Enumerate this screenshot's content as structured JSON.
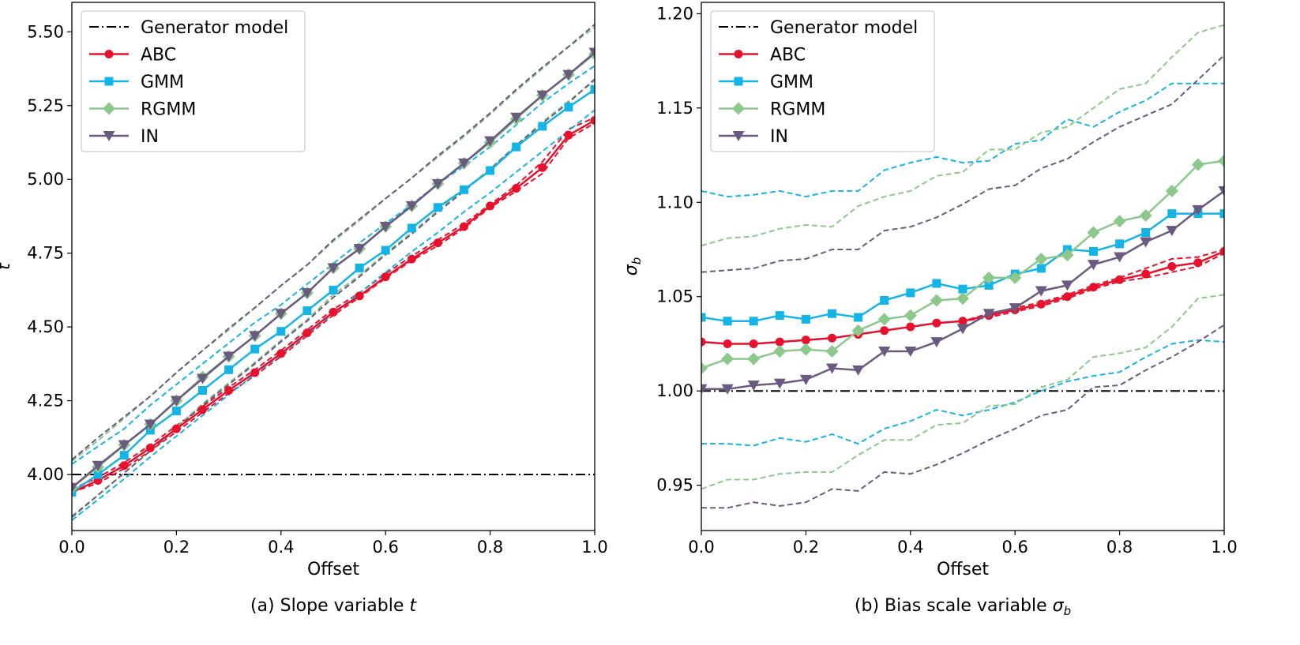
{
  "chart_data": [
    {
      "type": "line",
      "caption": "(a) Slope variable t",
      "caption_prefix": "(a) Slope variable ",
      "caption_var": "t",
      "xlabel": "Offset",
      "ylabel": "t",
      "xlim": [
        0.0,
        1.0
      ],
      "ylim": [
        3.81,
        5.6
      ],
      "xticks": [
        "0.0",
        "0.2",
        "0.4",
        "0.6",
        "0.8",
        "1.0"
      ],
      "yticks": [
        "4.00",
        "4.25",
        "4.50",
        "4.75",
        "5.00",
        "5.25",
        "5.50"
      ],
      "x": [
        0.0,
        0.05,
        0.1,
        0.15,
        0.2,
        0.25,
        0.3,
        0.35,
        0.4,
        0.45,
        0.5,
        0.55,
        0.6,
        0.65,
        0.7,
        0.75,
        0.8,
        0.85,
        0.9,
        0.95,
        1.0
      ],
      "reference": {
        "name": "Generator model",
        "value": 4.0,
        "color": "#000000"
      },
      "series": [
        {
          "name": "ABC",
          "color": "#e8112d",
          "marker": "circle",
          "values": [
            3.94,
            3.98,
            4.03,
            4.09,
            4.155,
            4.22,
            4.285,
            4.345,
            4.41,
            4.48,
            4.55,
            4.605,
            4.67,
            4.73,
            4.785,
            4.84,
            4.91,
            4.97,
            5.04,
            5.15,
            5.2
          ],
          "band_lower": [
            3.94,
            3.97,
            4.02,
            4.08,
            4.145,
            4.21,
            4.275,
            4.335,
            4.4,
            4.47,
            4.54,
            4.6,
            4.665,
            4.725,
            4.775,
            4.835,
            4.905,
            4.96,
            5.02,
            5.14,
            5.19
          ],
          "band_upper": [
            3.95,
            3.99,
            4.04,
            4.1,
            4.165,
            4.23,
            4.295,
            4.355,
            4.42,
            4.49,
            4.56,
            4.615,
            4.68,
            4.74,
            4.795,
            4.85,
            4.915,
            4.98,
            5.06,
            5.17,
            5.21
          ]
        },
        {
          "name": "GMM",
          "color": "#14b4e6",
          "marker": "square",
          "values": [
            3.94,
            4.0,
            4.065,
            4.15,
            4.215,
            4.285,
            4.355,
            4.425,
            4.485,
            4.555,
            4.625,
            4.7,
            4.76,
            4.835,
            4.905,
            4.965,
            5.03,
            5.11,
            5.18,
            5.245,
            5.305
          ],
          "band_lower": [
            3.845,
            3.915,
            3.985,
            4.06,
            4.13,
            4.2,
            4.27,
            4.34,
            4.405,
            4.475,
            4.545,
            4.615,
            4.685,
            4.755,
            4.82,
            4.89,
            4.955,
            5.025,
            5.095,
            5.165,
            5.235
          ],
          "band_upper": [
            4.035,
            4.095,
            4.155,
            4.235,
            4.305,
            4.375,
            4.445,
            4.515,
            4.575,
            4.645,
            4.715,
            4.785,
            4.85,
            4.915,
            4.985,
            5.045,
            5.11,
            5.185,
            5.26,
            5.325,
            5.385
          ]
        },
        {
          "name": "RGMM",
          "color": "#8cc88c",
          "marker": "diamond",
          "values": [
            3.955,
            4.025,
            4.1,
            4.17,
            4.25,
            4.33,
            4.4,
            4.47,
            4.545,
            4.615,
            4.7,
            4.765,
            4.84,
            4.91,
            4.985,
            5.055,
            5.125,
            5.205,
            5.285,
            5.355,
            5.425
          ],
          "band_lower": [
            3.86,
            3.93,
            4.005,
            4.08,
            4.16,
            4.24,
            4.31,
            4.38,
            4.455,
            4.525,
            4.61,
            4.675,
            4.75,
            4.82,
            4.895,
            4.965,
            5.035,
            5.115,
            5.195,
            5.265,
            5.335
          ],
          "band_upper": [
            4.045,
            4.115,
            4.19,
            4.265,
            4.345,
            4.42,
            4.49,
            4.565,
            4.64,
            4.71,
            4.79,
            4.86,
            4.935,
            5.005,
            5.075,
            5.145,
            5.22,
            5.3,
            5.375,
            5.45,
            5.515
          ]
        },
        {
          "name": "IN",
          "color": "#6a5a80",
          "marker": "triangle-down",
          "values": [
            3.955,
            4.03,
            4.1,
            4.17,
            4.25,
            4.325,
            4.4,
            4.47,
            4.545,
            4.615,
            4.7,
            4.765,
            4.84,
            4.91,
            4.985,
            5.055,
            5.13,
            5.21,
            5.285,
            5.355,
            5.43
          ],
          "band_lower": [
            3.855,
            3.93,
            4.005,
            4.08,
            4.155,
            4.235,
            4.305,
            4.375,
            4.45,
            4.52,
            4.6,
            4.67,
            4.745,
            4.815,
            4.89,
            4.96,
            5.035,
            5.115,
            5.19,
            5.26,
            5.34
          ],
          "band_upper": [
            4.05,
            4.125,
            4.195,
            4.265,
            4.345,
            4.42,
            4.495,
            4.565,
            4.64,
            4.71,
            4.795,
            4.865,
            4.935,
            5.005,
            5.08,
            5.15,
            5.225,
            5.305,
            5.38,
            5.45,
            5.525
          ]
        }
      ]
    },
    {
      "type": "line",
      "caption": "(b) Bias scale variable σb",
      "caption_prefix": "(b) Bias scale variable ",
      "caption_var": "σ",
      "caption_sub": "b",
      "xlabel": "Offset",
      "ylabel": "σb",
      "ylabel_var": "σ",
      "ylabel_sub": "b",
      "xlim": [
        0.0,
        1.0
      ],
      "ylim": [
        0.926,
        1.206
      ],
      "xticks": [
        "0.0",
        "0.2",
        "0.4",
        "0.6",
        "0.8",
        "1.0"
      ],
      "yticks": [
        "0.95",
        "1.00",
        "1.05",
        "1.10",
        "1.15",
        "1.20"
      ],
      "x": [
        0.0,
        0.05,
        0.1,
        0.15,
        0.2,
        0.25,
        0.3,
        0.35,
        0.4,
        0.45,
        0.5,
        0.55,
        0.6,
        0.65,
        0.7,
        0.75,
        0.8,
        0.85,
        0.9,
        0.95,
        1.0
      ],
      "reference": {
        "name": "Generator model",
        "value": 1.0,
        "color": "#000000"
      },
      "series": [
        {
          "name": "ABC",
          "color": "#e8112d",
          "marker": "circle",
          "values": [
            1.026,
            1.025,
            1.025,
            1.026,
            1.027,
            1.028,
            1.03,
            1.032,
            1.034,
            1.036,
            1.037,
            1.04,
            1.043,
            1.046,
            1.05,
            1.055,
            1.059,
            1.062,
            1.066,
            1.068,
            1.074
          ],
          "band_lower": [
            1.026,
            1.025,
            1.025,
            1.026,
            1.027,
            1.028,
            1.03,
            1.032,
            1.034,
            1.036,
            1.037,
            1.039,
            1.042,
            1.045,
            1.049,
            1.054,
            1.058,
            1.06,
            1.063,
            1.066,
            1.073
          ],
          "band_upper": [
            1.026,
            1.025,
            1.025,
            1.026,
            1.027,
            1.028,
            1.03,
            1.032,
            1.034,
            1.036,
            1.037,
            1.041,
            1.044,
            1.047,
            1.051,
            1.056,
            1.06,
            1.065,
            1.07,
            1.071,
            1.075
          ]
        },
        {
          "name": "GMM",
          "color": "#14b4e6",
          "marker": "square",
          "values": [
            1.039,
            1.037,
            1.037,
            1.04,
            1.038,
            1.041,
            1.039,
            1.048,
            1.052,
            1.057,
            1.054,
            1.056,
            1.062,
            1.065,
            1.075,
            1.074,
            1.078,
            1.084,
            1.094,
            1.094,
            1.094
          ],
          "band_lower": [
            0.972,
            0.972,
            0.971,
            0.975,
            0.973,
            0.977,
            0.972,
            0.98,
            0.984,
            0.99,
            0.987,
            0.99,
            0.994,
            1.0,
            1.005,
            1.008,
            1.01,
            1.018,
            1.025,
            1.027,
            1.026
          ],
          "band_upper": [
            1.106,
            1.103,
            1.104,
            1.106,
            1.103,
            1.106,
            1.106,
            1.117,
            1.121,
            1.124,
            1.121,
            1.122,
            1.131,
            1.133,
            1.144,
            1.14,
            1.148,
            1.154,
            1.163,
            1.163,
            1.163
          ]
        },
        {
          "name": "RGMM",
          "color": "#8cc88c",
          "marker": "diamond",
          "values": [
            1.012,
            1.017,
            1.017,
            1.021,
            1.022,
            1.021,
            1.032,
            1.038,
            1.04,
            1.048,
            1.049,
            1.06,
            1.06,
            1.07,
            1.072,
            1.084,
            1.09,
            1.093,
            1.106,
            1.12,
            1.122
          ],
          "band_lower": [
            0.948,
            0.953,
            0.953,
            0.956,
            0.957,
            0.957,
            0.966,
            0.974,
            0.974,
            0.982,
            0.983,
            0.992,
            0.993,
            1.002,
            1.006,
            1.018,
            1.02,
            1.023,
            1.034,
            1.049,
            1.051
          ],
          "band_upper": [
            1.077,
            1.081,
            1.082,
            1.086,
            1.088,
            1.087,
            1.098,
            1.103,
            1.106,
            1.114,
            1.116,
            1.128,
            1.128,
            1.137,
            1.14,
            1.15,
            1.16,
            1.163,
            1.177,
            1.19,
            1.194
          ]
        },
        {
          "name": "IN",
          "color": "#6a5a80",
          "marker": "triangle-down",
          "values": [
            1.001,
            1.001,
            1.003,
            1.004,
            1.006,
            1.012,
            1.011,
            1.021,
            1.021,
            1.026,
            1.033,
            1.041,
            1.044,
            1.053,
            1.056,
            1.067,
            1.071,
            1.079,
            1.085,
            1.096,
            1.106
          ],
          "band_lower": [
            0.938,
            0.938,
            0.941,
            0.939,
            0.941,
            0.948,
            0.947,
            0.957,
            0.956,
            0.961,
            0.967,
            0.974,
            0.98,
            0.987,
            0.99,
            1.002,
            1.003,
            1.011,
            1.018,
            1.026,
            1.035
          ],
          "band_upper": [
            1.063,
            1.064,
            1.065,
            1.069,
            1.07,
            1.075,
            1.075,
            1.085,
            1.087,
            1.092,
            1.099,
            1.107,
            1.109,
            1.118,
            1.123,
            1.132,
            1.14,
            1.146,
            1.152,
            1.165,
            1.178
          ]
        }
      ]
    }
  ],
  "legend": {
    "position": "top-left",
    "entries": [
      "Generator model",
      "ABC",
      "GMM",
      "RGMM",
      "IN"
    ]
  }
}
